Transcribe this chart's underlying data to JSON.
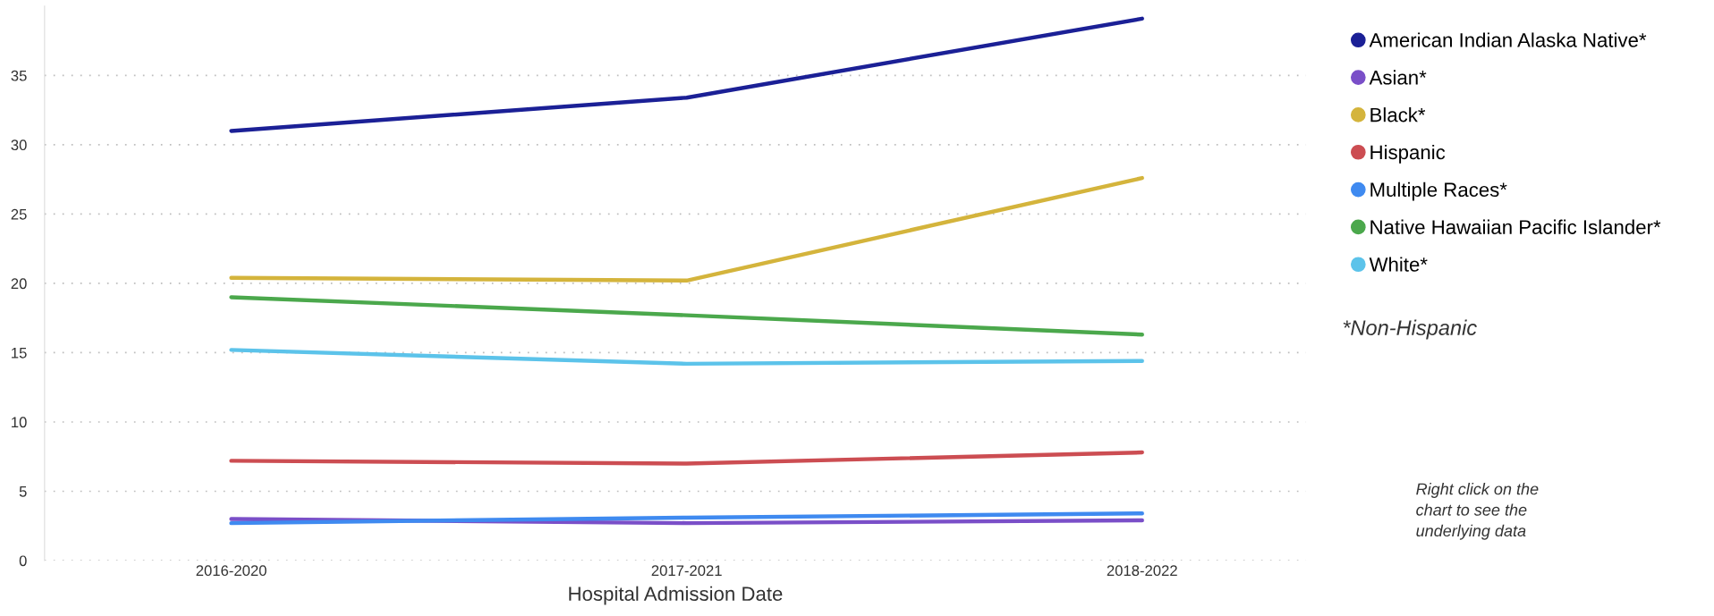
{
  "chart_data": {
    "type": "line",
    "xlabel": "Hospital Admission Date",
    "categories": [
      "2016-2020",
      "2017-2021",
      "2018-2022"
    ],
    "series": [
      {
        "name": "American Indian Alaska Native*",
        "color": "#1b2096",
        "values": [
          31.0,
          33.4,
          39.1
        ]
      },
      {
        "name": "Asian*",
        "color": "#7a4fc8",
        "values": [
          3.0,
          2.7,
          2.9
        ]
      },
      {
        "name": "Black*",
        "color": "#d4b43c",
        "values": [
          20.4,
          20.2,
          27.6
        ]
      },
      {
        "name": "Hispanic",
        "color": "#cc4d52",
        "values": [
          7.2,
          7.0,
          7.8
        ]
      },
      {
        "name": "Multiple Races*",
        "color": "#3f8af0",
        "values": [
          2.7,
          3.1,
          3.4
        ]
      },
      {
        "name": "Native Hawaiian Pacific Islander*",
        "color": "#4ba84c",
        "values": [
          19.0,
          17.7,
          16.3
        ]
      },
      {
        "name": "White*",
        "color": "#5cc3ea",
        "values": [
          15.2,
          14.2,
          14.4
        ]
      }
    ],
    "ylim": [
      0,
      40
    ],
    "yticks": [
      0,
      5,
      10,
      15,
      20,
      25,
      30,
      35
    ],
    "grid": "y",
    "legend": "right",
    "marker": "none",
    "line_style": "solid",
    "annotations": [
      "*Non-Hispanic",
      "Right click on the\nchart to see the\nunderlying data"
    ]
  }
}
